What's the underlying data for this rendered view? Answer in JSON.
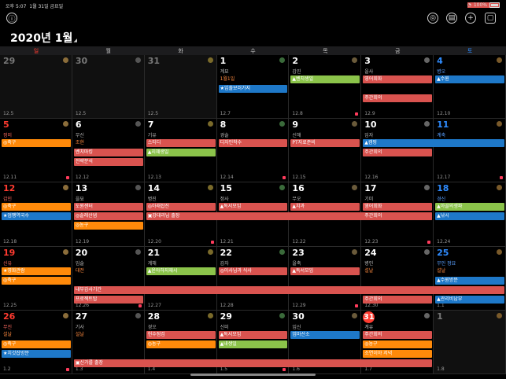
{
  "status": {
    "time": "오후 5:07",
    "date": "1월 31일 금요일",
    "battery": "100%"
  },
  "toolbar": {
    "menu_icon": "ⓘ",
    "target_icon": "◎",
    "list_icon": "▤",
    "add_icon": "+",
    "square_icon": "▢"
  },
  "title": "2020년 1월",
  "weekdays": [
    "일",
    "월",
    "화",
    "수",
    "목",
    "금",
    "토"
  ],
  "weeks": [
    {
      "days": [
        {
          "d": "29",
          "lunar": "",
          "wk": "12.5",
          "dim": true
        },
        {
          "d": "30",
          "lunar": "",
          "wk": "12.5",
          "dim": true
        },
        {
          "d": "31",
          "lunar": "",
          "wk": "12.5",
          "dim": true
        },
        {
          "d": "1",
          "lunar": "계묘",
          "wk": "12.7"
        },
        {
          "d": "2",
          "lunar": "갑진",
          "wk": "12.8"
        },
        {
          "d": "3",
          "lunar": "을사",
          "wk": "12.9"
        },
        {
          "d": "4",
          "lunar": "병오",
          "wk": "12.10"
        }
      ]
    },
    {
      "days": [
        {
          "d": "5",
          "lunar": "정미",
          "wk": "12.11"
        },
        {
          "d": "6",
          "lunar": "무신",
          "wk": "12.12"
        },
        {
          "d": "7",
          "lunar": "기유",
          "wk": "12.13"
        },
        {
          "d": "8",
          "lunar": "경술",
          "wk": "12.14"
        },
        {
          "d": "9",
          "lunar": "신해",
          "wk": "12.15"
        },
        {
          "d": "10",
          "lunar": "임자",
          "wk": "12.16"
        },
        {
          "d": "11",
          "lunar": "계축",
          "wk": "12.17"
        }
      ]
    },
    {
      "days": [
        {
          "d": "12",
          "lunar": "갑인",
          "wk": "12.18"
        },
        {
          "d": "13",
          "lunar": "을묘",
          "wk": "12.19"
        },
        {
          "d": "14",
          "lunar": "병진",
          "wk": "12.20"
        },
        {
          "d": "15",
          "lunar": "정사",
          "wk": "12.21"
        },
        {
          "d": "16",
          "lunar": "무오",
          "wk": "12.22"
        },
        {
          "d": "17",
          "lunar": "기미",
          "wk": "12.23"
        },
        {
          "d": "18",
          "lunar": "경신",
          "wk": "12.24"
        }
      ]
    },
    {
      "days": [
        {
          "d": "19",
          "lunar": "신유",
          "wk": "12.25"
        },
        {
          "d": "20",
          "lunar": "임술",
          "wk": "12.26"
        },
        {
          "d": "21",
          "lunar": "계해",
          "wk": "12.27"
        },
        {
          "d": "22",
          "lunar": "갑자",
          "wk": "12.28"
        },
        {
          "d": "23",
          "lunar": "을축",
          "wk": "12.29"
        },
        {
          "d": "24",
          "lunar": "병인",
          "wk": "12.30"
        },
        {
          "d": "25",
          "lunar": "무인 정묘",
          "wk": "1.1"
        }
      ]
    },
    {
      "days": [
        {
          "d": "26",
          "lunar": "무진",
          "wk": "1.2"
        },
        {
          "d": "27",
          "lunar": "기사",
          "wk": "1.3"
        },
        {
          "d": "28",
          "lunar": "경오",
          "wk": "1.4"
        },
        {
          "d": "29",
          "lunar": "신미",
          "wk": "1.5"
        },
        {
          "d": "30",
          "lunar": "임신",
          "wk": "1.6"
        },
        {
          "d": "31",
          "lunar": "계유",
          "wk": "1.7"
        },
        {
          "d": "1",
          "lunar": "",
          "wk": "1.8",
          "dim": true
        }
      ]
    }
  ],
  "events": [
    {
      "w": 0,
      "c": 3,
      "span": 1,
      "row": 0,
      "text": "1월1일",
      "cls": "t"
    },
    {
      "w": 0,
      "c": 3,
      "span": 1,
      "row": 1,
      "text": "★임출보러가지",
      "cls": "b"
    },
    {
      "w": 0,
      "c": 4,
      "span": 1,
      "row": 0,
      "text": "▲벤치생일",
      "cls": "g"
    },
    {
      "w": 0,
      "c": 5,
      "span": 1,
      "row": 0,
      "text": "영어회화",
      "cls": "r"
    },
    {
      "w": 0,
      "c": 5,
      "span": 1,
      "row": 2,
      "text": "주간회의",
      "cls": "r"
    },
    {
      "w": 0,
      "c": 6,
      "span": 1,
      "row": 0,
      "text": "▲수원",
      "cls": "b"
    },
    {
      "w": 1,
      "c": 0,
      "span": 1,
      "row": 0,
      "text": "◎축구",
      "cls": "o"
    },
    {
      "w": 1,
      "c": 1,
      "span": 1,
      "row": 0,
      "text": "조현",
      "cls": "t"
    },
    {
      "w": 1,
      "c": 1,
      "span": 1,
      "row": 1,
      "text": "벤치마킹",
      "cls": "r"
    },
    {
      "w": 1,
      "c": 1,
      "span": 1,
      "row": 2,
      "text": "전략분석",
      "cls": "r"
    },
    {
      "w": 1,
      "c": 2,
      "span": 1,
      "row": 0,
      "text": "스티디",
      "cls": "r"
    },
    {
      "w": 1,
      "c": 2,
      "span": 1,
      "row": 1,
      "text": "▲지혜생일",
      "cls": "g"
    },
    {
      "w": 1,
      "c": 3,
      "span": 1,
      "row": 0,
      "text": "디자인착수",
      "cls": "r"
    },
    {
      "w": 1,
      "c": 4,
      "span": 1,
      "row": 0,
      "text": "PT자료준비",
      "cls": "r"
    },
    {
      "w": 1,
      "c": 5,
      "span": 2,
      "row": 0,
      "text": "▲캠핑",
      "cls": "b"
    },
    {
      "w": 1,
      "c": 5,
      "span": 1,
      "row": 1,
      "text": "주간회의",
      "cls": "r"
    },
    {
      "w": 2,
      "c": 0,
      "span": 1,
      "row": 0,
      "text": "◎축구",
      "cls": "o"
    },
    {
      "w": 2,
      "c": 0,
      "span": 1,
      "row": 1,
      "text": "★엄팽역국수",
      "cls": "b"
    },
    {
      "w": 2,
      "c": 1,
      "span": 1,
      "row": 0,
      "text": "도원센터",
      "cls": "r"
    },
    {
      "w": 2,
      "c": 1,
      "span": 1,
      "row": 1,
      "text": "◎솔레산냄",
      "cls": "r"
    },
    {
      "w": 2,
      "c": 1,
      "span": 1,
      "row": 2,
      "text": "◎농구",
      "cls": "o"
    },
    {
      "w": 2,
      "c": 2,
      "span": 1,
      "row": 0,
      "text": "◎아래잡진",
      "cls": "r"
    },
    {
      "w": 2,
      "c": 2,
      "span": 4,
      "row": 1,
      "text": "▣강대리님 출장",
      "cls": "r"
    },
    {
      "w": 2,
      "c": 3,
      "span": 1,
      "row": 0,
      "text": "▲독서모임",
      "cls": "r"
    },
    {
      "w": 2,
      "c": 4,
      "span": 1,
      "row": 0,
      "text": "▲치과",
      "cls": "r"
    },
    {
      "w": 2,
      "c": 5,
      "span": 1,
      "row": 0,
      "text": "영어회화",
      "cls": "r"
    },
    {
      "w": 2,
      "c": 5,
      "span": 1,
      "row": 1,
      "text": "주간회의",
      "cls": "r"
    },
    {
      "w": 2,
      "c": 6,
      "span": 1,
      "row": 0,
      "text": "▲아골의생파",
      "cls": "g"
    },
    {
      "w": 2,
      "c": 6,
      "span": 1,
      "row": 1,
      "text": "▲낚시",
      "cls": "b"
    },
    {
      "w": 3,
      "c": 0,
      "span": 1,
      "row": 0,
      "text": "★영화관람",
      "cls": "o"
    },
    {
      "w": 3,
      "c": 0,
      "span": 1,
      "row": 1,
      "text": "◎축구",
      "cls": "o"
    },
    {
      "w": 3,
      "c": 1,
      "span": 1,
      "row": 0,
      "text": "대전",
      "cls": "t"
    },
    {
      "w": 3,
      "c": 2,
      "span": 1,
      "row": 0,
      "text": "▲윤아하지재시",
      "cls": "g"
    },
    {
      "w": 3,
      "c": 3,
      "span": 1,
      "row": 0,
      "text": "◎이사님과 식사",
      "cls": "r"
    },
    {
      "w": 3,
      "c": 4,
      "span": 1,
      "row": 0,
      "text": "▲독서모임",
      "cls": "r"
    },
    {
      "w": 3,
      "c": 5,
      "span": 1,
      "row": 0,
      "text": "설날",
      "cls": "t"
    },
    {
      "w": 3,
      "c": 6,
      "span": 1,
      "row": 0,
      "text": "설날",
      "cls": "t"
    },
    {
      "w": 3,
      "c": 6,
      "span": 1,
      "row": 1,
      "text": "▲수원방문",
      "cls": "b"
    },
    {
      "w": 3,
      "c": 1,
      "span": 6,
      "row": 2,
      "text": "내부감사기간",
      "cls": "r"
    },
    {
      "w": 3,
      "c": 1,
      "span": 1,
      "row": 3,
      "text": "프로젝트탑",
      "cls": "r"
    },
    {
      "w": 3,
      "c": 5,
      "span": 1,
      "row": 3,
      "text": "주간회의",
      "cls": "r"
    },
    {
      "w": 3,
      "c": 6,
      "span": 1,
      "row": 3,
      "text": "▲관리비납부",
      "cls": "b"
    },
    {
      "w": 4,
      "c": 0,
      "span": 1,
      "row": 0,
      "text": "설날",
      "cls": "t"
    },
    {
      "w": 4,
      "c": 0,
      "span": 1,
      "row": 1,
      "text": "◎축구",
      "cls": "o"
    },
    {
      "w": 4,
      "c": 0,
      "span": 1,
      "row": 2,
      "text": "★치것잡방문",
      "cls": "b"
    },
    {
      "w": 4,
      "c": 1,
      "span": 1,
      "row": 0,
      "text": "설날",
      "cls": "t"
    },
    {
      "w": 4,
      "c": 1,
      "span": 5,
      "row": 3,
      "text": "▣신가를 출장",
      "cls": "r"
    },
    {
      "w": 4,
      "c": 2,
      "span": 1,
      "row": 0,
      "text": "헌수점검",
      "cls": "r"
    },
    {
      "w": 4,
      "c": 2,
      "span": 1,
      "row": 1,
      "text": "◎농구",
      "cls": "o"
    },
    {
      "w": 4,
      "c": 3,
      "span": 1,
      "row": 0,
      "text": "▲독서모임",
      "cls": "r"
    },
    {
      "w": 4,
      "c": 3,
      "span": 1,
      "row": 1,
      "text": "▲내생일",
      "cls": "g"
    },
    {
      "w": 4,
      "c": 4,
      "span": 1,
      "row": 0,
      "text": "엄마산소",
      "cls": "b"
    },
    {
      "w": 4,
      "c": 5,
      "span": 1,
      "row": 0,
      "text": "주간회의",
      "cls": "r"
    },
    {
      "w": 4,
      "c": 5,
      "span": 1,
      "row": 1,
      "text": "◎농구",
      "cls": "o"
    },
    {
      "w": 4,
      "c": 5,
      "span": 1,
      "row": 2,
      "text": "소연이야 저녁",
      "cls": "o"
    }
  ],
  "colors": {
    "sunday": "#ff3b30",
    "saturday": "#2f8cff",
    "today": "#ff3b30"
  }
}
